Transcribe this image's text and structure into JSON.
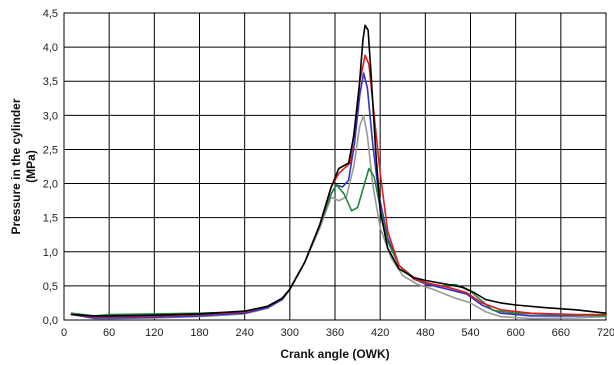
{
  "chart_data": {
    "type": "line",
    "xlabel": "Crank angle (OWK)",
    "ylabel_lines": [
      "Pressure in the cylinder",
      "(MPa)"
    ],
    "xlim": [
      0,
      720
    ],
    "ylim": [
      0,
      4.5
    ],
    "x_ticks": [
      "0",
      "60",
      "120",
      "180",
      "240",
      "300",
      "360",
      "420",
      "480",
      "540",
      "600",
      "660",
      "720"
    ],
    "y_ticks": [
      "0,0",
      "0,5",
      "1,0",
      "1,5",
      "2,0",
      "2,5",
      "3,0",
      "3,5",
      "4,0",
      "4,5"
    ],
    "grid": true,
    "series": [
      {
        "color": "#000000",
        "points": [
          [
            10,
            0.08
          ],
          [
            40,
            0.06
          ],
          [
            60,
            0.06
          ],
          [
            120,
            0.07
          ],
          [
            180,
            0.09
          ],
          [
            240,
            0.13
          ],
          [
            270,
            0.2
          ],
          [
            290,
            0.32
          ],
          [
            300,
            0.45
          ],
          [
            320,
            0.85
          ],
          [
            340,
            1.4
          ],
          [
            355,
            1.95
          ],
          [
            365,
            2.22
          ],
          [
            378,
            2.3
          ],
          [
            385,
            2.7
          ],
          [
            392,
            3.4
          ],
          [
            397,
            4.1
          ],
          [
            400,
            4.32
          ],
          [
            404,
            4.25
          ],
          [
            408,
            3.6
          ],
          [
            414,
            2.5
          ],
          [
            420,
            1.6
          ],
          [
            430,
            1.05
          ],
          [
            445,
            0.75
          ],
          [
            465,
            0.62
          ],
          [
            480,
            0.58
          ],
          [
            510,
            0.52
          ],
          [
            530,
            0.48
          ],
          [
            545,
            0.4
          ],
          [
            560,
            0.3
          ],
          [
            580,
            0.25
          ],
          [
            600,
            0.22
          ],
          [
            640,
            0.18
          ],
          [
            680,
            0.15
          ],
          [
            720,
            0.1
          ]
        ]
      },
      {
        "color": "#e11b1b",
        "points": [
          [
            10,
            0.08
          ],
          [
            40,
            0.05
          ],
          [
            60,
            0.05
          ],
          [
            120,
            0.06
          ],
          [
            180,
            0.08
          ],
          [
            240,
            0.12
          ],
          [
            270,
            0.2
          ],
          [
            290,
            0.32
          ],
          [
            300,
            0.45
          ],
          [
            320,
            0.85
          ],
          [
            340,
            1.4
          ],
          [
            355,
            1.95
          ],
          [
            365,
            2.15
          ],
          [
            380,
            2.3
          ],
          [
            387,
            2.9
          ],
          [
            393,
            3.5
          ],
          [
            400,
            3.88
          ],
          [
            405,
            3.75
          ],
          [
            412,
            3.0
          ],
          [
            420,
            2.15
          ],
          [
            430,
            1.3
          ],
          [
            445,
            0.8
          ],
          [
            465,
            0.6
          ],
          [
            480,
            0.55
          ],
          [
            510,
            0.48
          ],
          [
            535,
            0.4
          ],
          [
            555,
            0.25
          ],
          [
            580,
            0.15
          ],
          [
            620,
            0.1
          ],
          [
            680,
            0.08
          ],
          [
            720,
            0.08
          ]
        ]
      },
      {
        "color": "#3333cc",
        "points": [
          [
            10,
            0.08
          ],
          [
            40,
            0.03
          ],
          [
            60,
            0.03
          ],
          [
            120,
            0.04
          ],
          [
            180,
            0.06
          ],
          [
            240,
            0.1
          ],
          [
            270,
            0.18
          ],
          [
            290,
            0.3
          ],
          [
            300,
            0.45
          ],
          [
            320,
            0.85
          ],
          [
            340,
            1.4
          ],
          [
            355,
            1.85
          ],
          [
            362,
            1.98
          ],
          [
            370,
            1.95
          ],
          [
            378,
            2.05
          ],
          [
            386,
            2.6
          ],
          [
            393,
            3.3
          ],
          [
            398,
            3.62
          ],
          [
            403,
            3.4
          ],
          [
            410,
            2.6
          ],
          [
            418,
            1.85
          ],
          [
            430,
            1.2
          ],
          [
            445,
            0.8
          ],
          [
            465,
            0.6
          ],
          [
            480,
            0.53
          ],
          [
            510,
            0.45
          ],
          [
            535,
            0.38
          ],
          [
            555,
            0.22
          ],
          [
            580,
            0.1
          ],
          [
            620,
            0.06
          ],
          [
            680,
            0.06
          ],
          [
            720,
            0.07
          ]
        ]
      },
      {
        "color": "#999999",
        "points": [
          [
            10,
            0.08
          ],
          [
            40,
            0.02
          ],
          [
            60,
            0.02
          ],
          [
            120,
            0.03
          ],
          [
            180,
            0.05
          ],
          [
            240,
            0.09
          ],
          [
            270,
            0.17
          ],
          [
            290,
            0.3
          ],
          [
            300,
            0.45
          ],
          [
            320,
            0.85
          ],
          [
            340,
            1.35
          ],
          [
            355,
            1.8
          ],
          [
            365,
            1.75
          ],
          [
            375,
            1.8
          ],
          [
            385,
            2.25
          ],
          [
            393,
            2.85
          ],
          [
            398,
            3.0
          ],
          [
            403,
            2.7
          ],
          [
            410,
            2.0
          ],
          [
            420,
            1.35
          ],
          [
            435,
            0.9
          ],
          [
            450,
            0.65
          ],
          [
            470,
            0.52
          ],
          [
            490,
            0.45
          ],
          [
            520,
            0.32
          ],
          [
            540,
            0.25
          ],
          [
            560,
            0.12
          ],
          [
            580,
            0.05
          ],
          [
            620,
            0.02
          ],
          [
            680,
            0.03
          ],
          [
            720,
            0.05
          ]
        ]
      },
      {
        "color": "#1e8a3c",
        "points": [
          [
            10,
            0.1
          ],
          [
            40,
            0.06
          ],
          [
            60,
            0.08
          ],
          [
            120,
            0.09
          ],
          [
            180,
            0.1
          ],
          [
            240,
            0.12
          ],
          [
            270,
            0.2
          ],
          [
            290,
            0.32
          ],
          [
            300,
            0.45
          ],
          [
            320,
            0.85
          ],
          [
            340,
            1.4
          ],
          [
            355,
            1.85
          ],
          [
            362,
            1.98
          ],
          [
            372,
            1.85
          ],
          [
            382,
            1.6
          ],
          [
            390,
            1.65
          ],
          [
            398,
            1.95
          ],
          [
            405,
            2.22
          ],
          [
            412,
            2.1
          ],
          [
            420,
            1.65
          ],
          [
            430,
            1.15
          ],
          [
            445,
            0.8
          ],
          [
            465,
            0.62
          ],
          [
            480,
            0.55
          ],
          [
            500,
            0.5
          ],
          [
            520,
            0.52
          ],
          [
            540,
            0.42
          ],
          [
            555,
            0.28
          ],
          [
            570,
            0.14
          ],
          [
            600,
            0.1
          ],
          [
            650,
            0.08
          ],
          [
            720,
            0.06
          ]
        ]
      }
    ]
  }
}
